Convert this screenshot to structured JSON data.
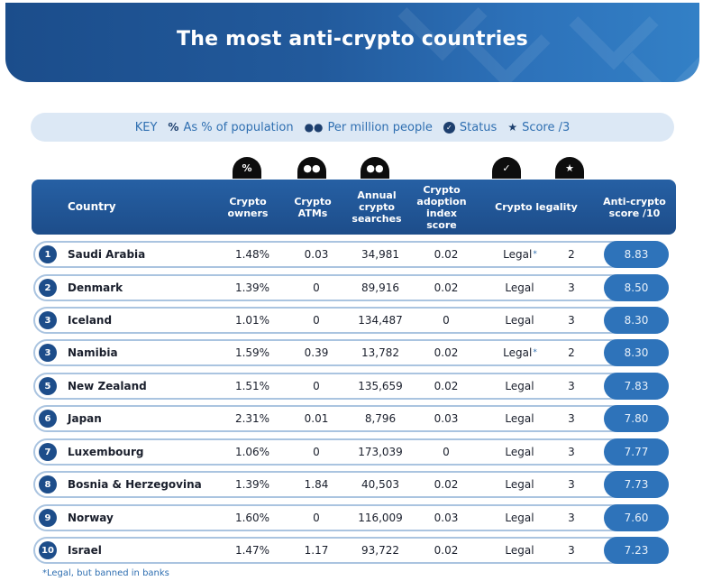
{
  "header": {
    "title": "The most anti-crypto countries"
  },
  "key": {
    "label": "KEY",
    "items": [
      {
        "icon": "percent-icon",
        "glyph": "%",
        "label": "As % of population"
      },
      {
        "icon": "people-icon",
        "glyph": "👥",
        "label": "Per million people"
      },
      {
        "icon": "check-circle-icon",
        "glyph": "✓",
        "label": "Status"
      },
      {
        "icon": "star-icon",
        "glyph": "★",
        "label": "Score /3"
      }
    ]
  },
  "column_icons": [
    {
      "icon": "percent-icon",
      "glyph": "%"
    },
    {
      "icon": "people-icon",
      "glyph": "👥"
    },
    {
      "icon": "people-icon",
      "glyph": "👥"
    },
    {
      "icon": "check-circle-icon",
      "glyph": "✓"
    },
    {
      "icon": "star-icon",
      "glyph": "★"
    }
  ],
  "table": {
    "headers": {
      "country": "Country",
      "owners": "Crypto owners",
      "atms": "Crypto ATMs",
      "searches": "Annual crypto searches",
      "adoption": "Crypto adoption index score",
      "legality": "Crypto legality",
      "score": "Anti-crypto score /10"
    },
    "rows": [
      {
        "rank": "1",
        "country": "Saudi Arabia",
        "owners": "1.48%",
        "atms": "0.03",
        "searches": "34,981",
        "adoption": "0.02",
        "status": "Legal",
        "asterisk": "*",
        "status_score": "2",
        "score": "8.83"
      },
      {
        "rank": "2",
        "country": "Denmark",
        "owners": "1.39%",
        "atms": "0",
        "searches": "89,916",
        "adoption": "0.02",
        "status": "Legal",
        "asterisk": "",
        "status_score": "3",
        "score": "8.50"
      },
      {
        "rank": "3",
        "country": "Iceland",
        "owners": "1.01%",
        "atms": "0",
        "searches": "134,487",
        "adoption": "0",
        "status": "Legal",
        "asterisk": "",
        "status_score": "3",
        "score": "8.30"
      },
      {
        "rank": "3",
        "country": "Namibia",
        "owners": "1.59%",
        "atms": "0.39",
        "searches": "13,782",
        "adoption": "0.02",
        "status": "Legal",
        "asterisk": "*",
        "status_score": "2",
        "score": "8.30"
      },
      {
        "rank": "5",
        "country": "New Zealand",
        "owners": "1.51%",
        "atms": "0",
        "searches": "135,659",
        "adoption": "0.02",
        "status": "Legal",
        "asterisk": "",
        "status_score": "3",
        "score": "7.83"
      },
      {
        "rank": "6",
        "country": "Japan",
        "owners": "2.31%",
        "atms": "0.01",
        "searches": "8,796",
        "adoption": "0.03",
        "status": "Legal",
        "asterisk": "",
        "status_score": "3",
        "score": "7.80"
      },
      {
        "rank": "7",
        "country": "Luxembourg",
        "owners": "1.06%",
        "atms": "0",
        "searches": "173,039",
        "adoption": "0",
        "status": "Legal",
        "asterisk": "",
        "status_score": "3",
        "score": "7.77"
      },
      {
        "rank": "8",
        "country": "Bosnia & Herzegovina",
        "owners": "1.39%",
        "atms": "1.84",
        "searches": "40,503",
        "adoption": "0.02",
        "status": "Legal",
        "asterisk": "",
        "status_score": "3",
        "score": "7.73"
      },
      {
        "rank": "9",
        "country": "Norway",
        "owners": "1.60%",
        "atms": "0",
        "searches": "116,009",
        "adoption": "0.03",
        "status": "Legal",
        "asterisk": "",
        "status_score": "3",
        "score": "7.60"
      },
      {
        "rank": "10",
        "country": "Israel",
        "owners": "1.47%",
        "atms": "1.17",
        "searches": "93,722",
        "adoption": "0.02",
        "status": "Legal",
        "asterisk": "",
        "status_score": "3",
        "score": "7.23"
      }
    ]
  },
  "footnote": "*Legal, but banned in banks",
  "colors": {
    "banner_dark": "#1b4d8b",
    "banner_light": "#3380c6",
    "key_bg": "#dce8f5",
    "accent_text": "#2f6fb1",
    "header_bg": "#1d4d8a",
    "score_pill": "#2e73ba",
    "row_border": "#aac4e0"
  }
}
